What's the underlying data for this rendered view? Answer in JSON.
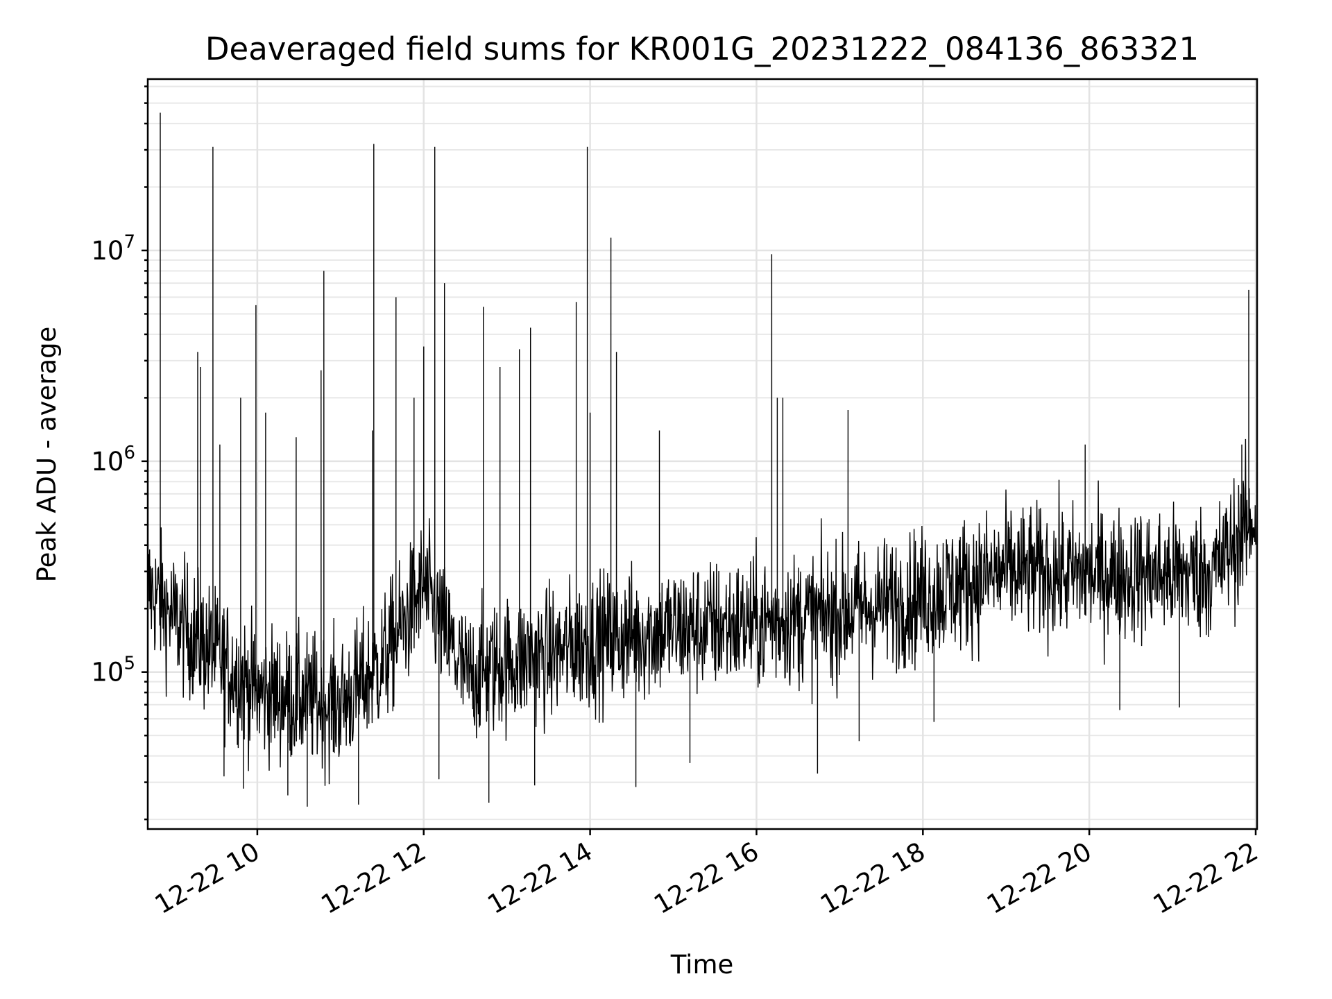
{
  "chart_data": {
    "type": "line",
    "title": "Deaveraged field sums for KR001G_20231222_084136_863321",
    "xlabel": "Time",
    "ylabel": "Peak ADU - average",
    "x_range": [
      "2023-12-22 08:41",
      "2023-12-22 22:00"
    ],
    "xlim": [
      "2023-12-22 08:41",
      "2023-12-22 22:01"
    ],
    "ylim": [
      18000,
      65000000
    ],
    "y_scale": "log",
    "grid": true,
    "legend": "none",
    "series_color": "#000000",
    "x_ticks": [
      "12-22 10",
      "12-22 12",
      "12-22 14",
      "12-22 16",
      "12-22 18",
      "12-22 20",
      "12-22 22"
    ],
    "y_ticks": [
      {
        "base": "10",
        "exp": "5",
        "value": 100000
      },
      {
        "base": "10",
        "exp": "6",
        "value": 1000000
      },
      {
        "base": "10",
        "exp": "7",
        "value": 10000000
      }
    ],
    "trend_points": [
      {
        "t": "2023-12-22 08:41",
        "y": 250000
      },
      {
        "t": "2023-12-22 09:00",
        "y": 180000
      },
      {
        "t": "2023-12-22 09:30",
        "y": 120000
      },
      {
        "t": "2023-12-22 10:00",
        "y": 80000
      },
      {
        "t": "2023-12-22 10:30",
        "y": 75000
      },
      {
        "t": "2023-12-22 11:00",
        "y": 70000
      },
      {
        "t": "2023-12-22 11:30",
        "y": 110000
      },
      {
        "t": "2023-12-22 12:00",
        "y": 250000
      },
      {
        "t": "2023-12-22 12:30",
        "y": 95000
      },
      {
        "t": "2023-12-22 13:00",
        "y": 110000
      },
      {
        "t": "2023-12-22 13:30",
        "y": 120000
      },
      {
        "t": "2023-12-22 14:00",
        "y": 140000
      },
      {
        "t": "2023-12-22 15:00",
        "y": 160000
      },
      {
        "t": "2023-12-22 16:00",
        "y": 170000
      },
      {
        "t": "2023-12-22 17:00",
        "y": 190000
      },
      {
        "t": "2023-12-22 18:00",
        "y": 230000
      },
      {
        "t": "2023-12-22 19:00",
        "y": 300000
      },
      {
        "t": "2023-12-22 20:00",
        "y": 290000
      },
      {
        "t": "2023-12-22 21:00",
        "y": 290000
      },
      {
        "t": "2023-12-22 21:30",
        "y": 300000
      },
      {
        "t": "2023-12-22 22:00",
        "y": 550000
      }
    ],
    "spikes": [
      {
        "t": "2023-12-22 08:50",
        "y": 45000000
      },
      {
        "t": "2023-12-22 08:50",
        "y": 7000000
      },
      {
        "t": "2023-12-22 09:17",
        "y": 3300000
      },
      {
        "t": "2023-12-22 09:19",
        "y": 2800000
      },
      {
        "t": "2023-12-22 09:28",
        "y": 31000000
      },
      {
        "t": "2023-12-22 09:33",
        "y": 1200000
      },
      {
        "t": "2023-12-22 09:48",
        "y": 2000000
      },
      {
        "t": "2023-12-22 09:59",
        "y": 5500000
      },
      {
        "t": "2023-12-22 10:06",
        "y": 1700000
      },
      {
        "t": "2023-12-22 10:28",
        "y": 1300000
      },
      {
        "t": "2023-12-22 10:48",
        "y": 8000000
      },
      {
        "t": "2023-12-22 10:46",
        "y": 2700000
      },
      {
        "t": "2023-12-22 11:24",
        "y": 32000000
      },
      {
        "t": "2023-12-22 11:23",
        "y": 1400000
      },
      {
        "t": "2023-12-22 11:40",
        "y": 6000000
      },
      {
        "t": "2023-12-22 11:53",
        "y": 2000000
      },
      {
        "t": "2023-12-22 12:00",
        "y": 3500000
      },
      {
        "t": "2023-12-22 12:08",
        "y": 31000000
      },
      {
        "t": "2023-12-22 12:15",
        "y": 7000000
      },
      {
        "t": "2023-12-22 12:43",
        "y": 5400000
      },
      {
        "t": "2023-12-22 12:55",
        "y": 2800000
      },
      {
        "t": "2023-12-22 13:09",
        "y": 3400000
      },
      {
        "t": "2023-12-22 13:17",
        "y": 4300000
      },
      {
        "t": "2023-12-22 13:50",
        "y": 5700000
      },
      {
        "t": "2023-12-22 13:58",
        "y": 31000000
      },
      {
        "t": "2023-12-22 14:00",
        "y": 1700000
      },
      {
        "t": "2023-12-22 14:15",
        "y": 11500000
      },
      {
        "t": "2023-12-22 14:19",
        "y": 3300000
      },
      {
        "t": "2023-12-22 14:50",
        "y": 1400000
      },
      {
        "t": "2023-12-22 16:11",
        "y": 9600000
      },
      {
        "t": "2023-12-22 16:15",
        "y": 2000000
      },
      {
        "t": "2023-12-22 16:19",
        "y": 2000000
      },
      {
        "t": "2023-12-22 17:06",
        "y": 1750000
      },
      {
        "t": "2023-12-22 19:57",
        "y": 1200000
      },
      {
        "t": "2023-12-22 21:50",
        "y": 1200000
      },
      {
        "t": "2023-12-22 21:55",
        "y": 6500000
      }
    ],
    "dips": [
      {
        "t": "2023-12-22 09:36",
        "y": 32000
      },
      {
        "t": "2023-12-22 09:50",
        "y": 28000
      },
      {
        "t": "2023-12-22 10:22",
        "y": 26000
      },
      {
        "t": "2023-12-22 10:36",
        "y": 23000
      },
      {
        "t": "2023-12-22 11:13",
        "y": 23500
      },
      {
        "t": "2023-12-22 12:11",
        "y": 31000
      },
      {
        "t": "2023-12-22 12:47",
        "y": 24000
      },
      {
        "t": "2023-12-22 13:20",
        "y": 29000
      },
      {
        "t": "2023-12-22 14:33",
        "y": 28500
      },
      {
        "t": "2023-12-22 15:12",
        "y": 37000
      },
      {
        "t": "2023-12-22 16:44",
        "y": 33000
      },
      {
        "t": "2023-12-22 17:14",
        "y": 47000
      },
      {
        "t": "2023-12-22 18:08",
        "y": 58000
      },
      {
        "t": "2023-12-22 20:22",
        "y": 66000
      },
      {
        "t": "2023-12-22 21:05",
        "y": 68000
      }
    ]
  }
}
